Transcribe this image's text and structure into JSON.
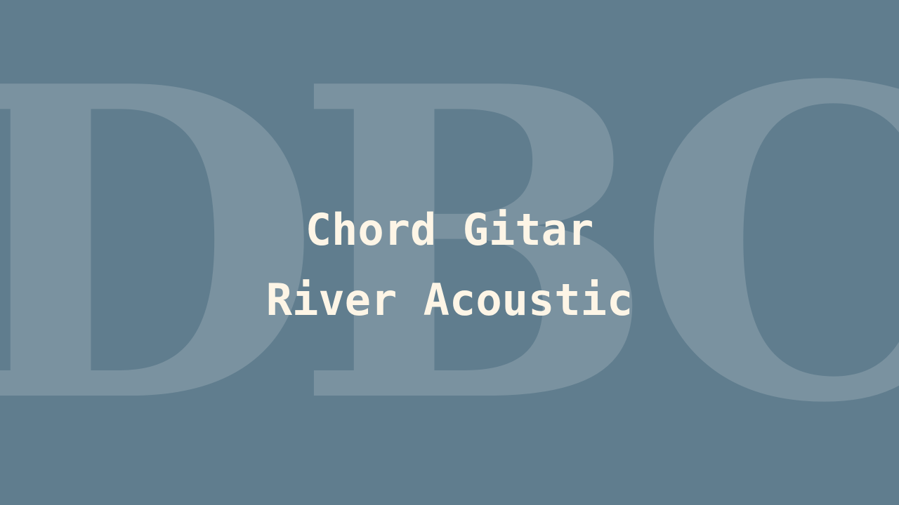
{
  "colors": {
    "background": "#607d8e",
    "watermark": "#ffffff",
    "title_text": "#fdf5e6"
  },
  "watermark": {
    "text": "DBC"
  },
  "title": {
    "line1": "Chord Gitar",
    "line2": "River Acoustic"
  }
}
